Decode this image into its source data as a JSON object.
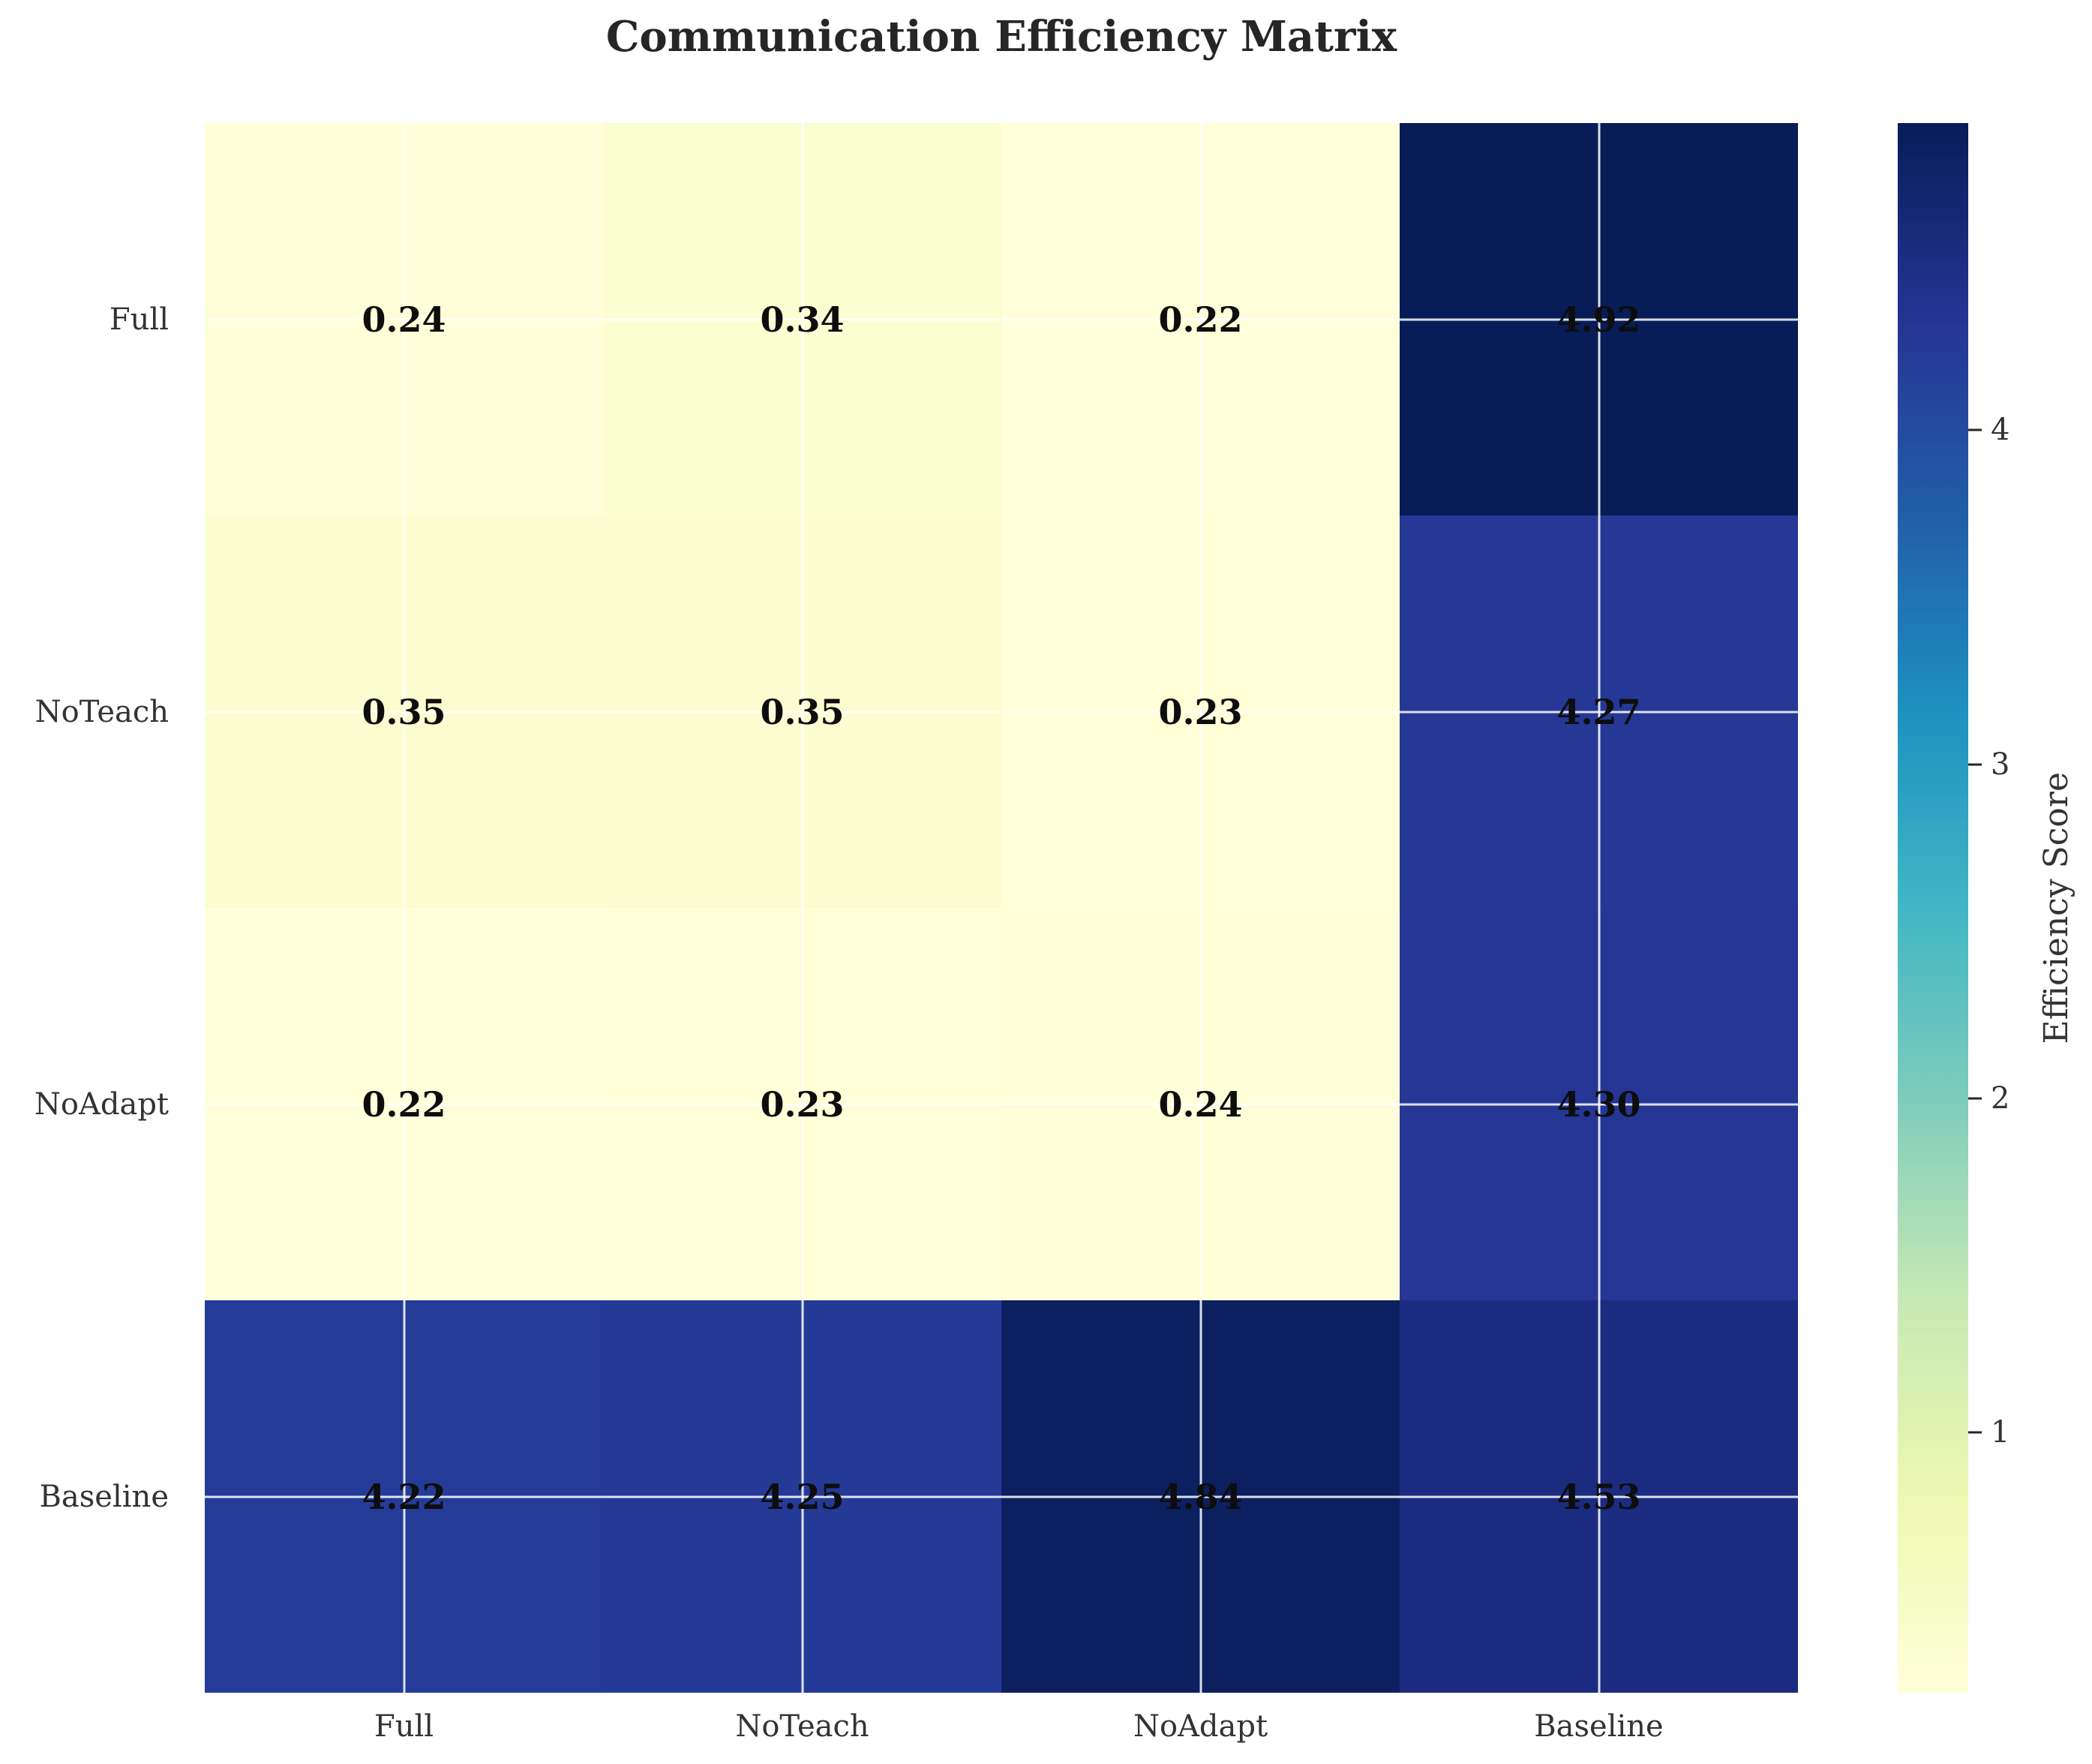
{
  "chart_data": {
    "type": "heatmap",
    "title": "Communication Efficiency Matrix",
    "rows": [
      "Full",
      "NoTeach",
      "NoAdapt",
      "Baseline"
    ],
    "columns": [
      "Full",
      "NoTeach",
      "NoAdapt",
      "Baseline"
    ],
    "values": [
      [
        0.24,
        0.34,
        0.22,
        4.92
      ],
      [
        0.35,
        0.35,
        0.23,
        4.27
      ],
      [
        0.22,
        0.23,
        0.24,
        4.3
      ],
      [
        4.22,
        4.25,
        4.84,
        4.53
      ]
    ],
    "colorbar": {
      "label": "Efficiency Score",
      "ticks": [
        1,
        2,
        3,
        4
      ],
      "vmin": 0.22,
      "vmax": 4.92,
      "position": "right"
    },
    "colormap": {
      "name": "YlGnBu",
      "stops": [
        {
          "pos": 0.0,
          "color": "#ffffd9"
        },
        {
          "pos": 0.125,
          "color": "#edf8b1"
        },
        {
          "pos": 0.25,
          "color": "#c7e9b4"
        },
        {
          "pos": 0.375,
          "color": "#7fcdbb"
        },
        {
          "pos": 0.5,
          "color": "#41b6c4"
        },
        {
          "pos": 0.625,
          "color": "#1d91c0"
        },
        {
          "pos": 0.75,
          "color": "#225ea8"
        },
        {
          "pos": 0.875,
          "color": "#253494"
        },
        {
          "pos": 1.0,
          "color": "#081d58"
        }
      ]
    },
    "annotation_color": "#0d0d0d",
    "grid": true,
    "value_format": "2-decimals"
  }
}
